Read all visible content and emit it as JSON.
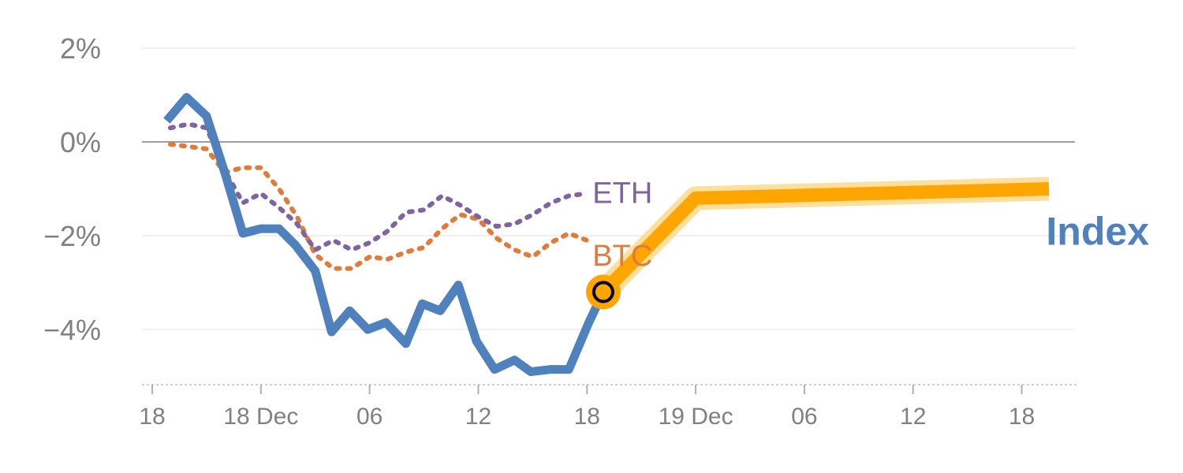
{
  "chart_data": {
    "type": "line",
    "title": "",
    "xlabel": "",
    "ylabel": "",
    "ylim": [
      -5.2,
      2.5
    ],
    "xlim_hours": [
      -0.5,
      51.1
    ],
    "y_ticks": [
      {
        "value": 2,
        "label": "2%"
      },
      {
        "value": 0,
        "label": "0%"
      },
      {
        "value": -2,
        "label": "−2%"
      },
      {
        "value": -4,
        "label": "−4%"
      }
    ],
    "x_ticks": [
      {
        "hour": 0,
        "label": "18"
      },
      {
        "hour": 6,
        "label": "18 Dec"
      },
      {
        "hour": 12,
        "label": "06"
      },
      {
        "hour": 18,
        "label": "12"
      },
      {
        "hour": 24,
        "label": "18"
      },
      {
        "hour": 30,
        "label": "19 Dec"
      },
      {
        "hour": 36,
        "label": "06"
      },
      {
        "hour": 42,
        "label": "12"
      },
      {
        "hour": 48,
        "label": "18"
      }
    ],
    "series": [
      {
        "name": "Index",
        "label": "Index",
        "color": "#4f81bd",
        "x": [
          0.8,
          1.9,
          3.0,
          4.0,
          5.0,
          6.0,
          7.0,
          7.9,
          9.0,
          9.9,
          10.9,
          11.9,
          12.9,
          14.0,
          14.9,
          15.9,
          16.9,
          17.9,
          18.9,
          20.0,
          20.9,
          22.0,
          23.0,
          24.1,
          24.9
        ],
        "values": [
          0.45,
          0.95,
          0.55,
          -0.65,
          -1.95,
          -1.85,
          -1.85,
          -2.2,
          -2.75,
          -4.05,
          -3.6,
          -4.0,
          -3.85,
          -4.3,
          -3.45,
          -3.6,
          -3.05,
          -4.25,
          -4.85,
          -4.65,
          -4.9,
          -4.85,
          -4.85,
          -3.85,
          -3.2
        ]
      },
      {
        "name": "ETH",
        "label": "ETH",
        "color": "#8064a2",
        "x": [
          1,
          2,
          3,
          4,
          5,
          6,
          7,
          8,
          9,
          10,
          11,
          12,
          13,
          14,
          15,
          16,
          17,
          18,
          19,
          20,
          21,
          22,
          23,
          24
        ],
        "values": [
          0.3,
          0.38,
          0.3,
          -0.6,
          -1.3,
          -1.1,
          -1.4,
          -1.75,
          -2.3,
          -2.1,
          -2.3,
          -2.15,
          -1.9,
          -1.5,
          -1.45,
          -1.15,
          -1.35,
          -1.6,
          -1.8,
          -1.75,
          -1.55,
          -1.3,
          -1.15,
          -1.1
        ]
      },
      {
        "name": "BTC",
        "label": "BTC",
        "color": "#e07b39",
        "x": [
          1,
          2,
          3,
          4,
          5,
          6,
          7,
          8,
          9,
          10,
          11,
          12,
          13,
          14,
          15,
          16,
          17,
          18,
          19,
          20,
          21,
          22,
          23,
          24
        ],
        "values": [
          -0.05,
          -0.1,
          -0.15,
          -0.65,
          -0.55,
          -0.55,
          -1.0,
          -1.6,
          -2.4,
          -2.7,
          -2.7,
          -2.45,
          -2.5,
          -2.35,
          -2.25,
          -1.85,
          -1.55,
          -1.65,
          -2.05,
          -2.3,
          -2.45,
          -2.15,
          -1.95,
          -2.1
        ]
      },
      {
        "name": "Projection",
        "label": "",
        "color": "#ffa500",
        "x": [
          24.9,
          30.0,
          49.5
        ],
        "values": [
          -3.2,
          -1.2,
          -1.0
        ]
      }
    ],
    "marker": {
      "hour": 24.9,
      "value": -3.2,
      "fill": "#ffa500",
      "stroke": "#000000"
    }
  }
}
